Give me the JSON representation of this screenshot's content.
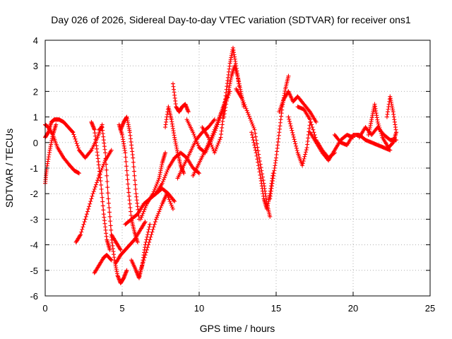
{
  "chart_data": {
    "type": "scatter",
    "title": "Day 026 of 2026, Sidereal Day-to-day VTEC variation (SDTVAR) for receiver ons1",
    "xlabel": "GPS time / hours",
    "ylabel": "SDTVAR / TECUs",
    "xlim": [
      0,
      25
    ],
    "ylim": [
      -6,
      4
    ],
    "x_ticks": [
      0,
      5,
      10,
      15,
      20,
      25
    ],
    "x_tick_labels": [
      "0",
      "5",
      "10",
      "15",
      "20",
      "25"
    ],
    "y_ticks": [
      -6,
      -5,
      -4,
      -3,
      -2,
      -1,
      0,
      1,
      2,
      3,
      4
    ],
    "y_tick_labels": [
      "-6",
      "-5",
      "-4",
      "-3",
      "-2",
      "-1",
      "0",
      "1",
      "2",
      "3",
      "4"
    ],
    "grid": true,
    "series": [
      {
        "name": "SDTVAR",
        "color": "#ff0000",
        "marker": "plus",
        "segments": [
          {
            "x": [
              0.0,
              0.2,
              0.5,
              0.8,
              1.2,
              1.6,
              1.9,
              2.2
            ],
            "y": [
              0.7,
              0.6,
              0.3,
              -0.2,
              -0.6,
              -0.9,
              -1.1,
              -1.2
            ]
          },
          {
            "x": [
              0.0,
              0.2,
              0.4,
              0.6,
              0.9,
              1.2,
              1.5,
              1.8
            ],
            "y": [
              0.2,
              0.4,
              0.8,
              0.9,
              0.9,
              0.8,
              0.6,
              0.4
            ]
          },
          {
            "x": [
              0.0,
              0.1,
              0.3,
              0.5,
              0.7
            ],
            "y": [
              -1.6,
              -1.0,
              -0.3,
              0.3,
              0.7
            ]
          },
          {
            "x": [
              1.8,
              2.2,
              2.6,
              3.0,
              3.4,
              3.7
            ],
            "y": [
              0.4,
              -0.3,
              -0.6,
              -0.3,
              0.2,
              0.7
            ]
          },
          {
            "x": [
              2.0,
              2.3,
              2.7,
              3.1,
              3.5,
              3.9,
              4.3
            ],
            "y": [
              -3.9,
              -3.6,
              -2.8,
              -2.0,
              -1.3,
              -0.7,
              -0.3
            ]
          },
          {
            "x": [
              3.0,
              3.2,
              3.4,
              3.6,
              3.8,
              4.0,
              4.2
            ],
            "y": [
              0.8,
              0.5,
              -0.5,
              -1.5,
              -2.8,
              -3.8,
              -4.2
            ]
          },
          {
            "x": [
              3.2,
              3.5,
              3.8,
              4.0,
              4.3
            ],
            "y": [
              -5.1,
              -4.8,
              -4.5,
              -4.4,
              -4.6
            ]
          },
          {
            "x": [
              3.5,
              3.7,
              3.9,
              4.1,
              4.3,
              4.6,
              4.9
            ],
            "y": [
              0.5,
              0.6,
              -0.4,
              -2.2,
              -3.6,
              -3.9,
              -4.2
            ]
          },
          {
            "x": [
              4.3,
              4.5,
              4.7,
              4.9,
              5.1,
              5.3
            ],
            "y": [
              -3.7,
              -4.6,
              -5.2,
              -5.5,
              -5.3,
              -5.0
            ]
          },
          {
            "x": [
              4.8,
              5.0,
              5.2,
              5.4,
              5.6,
              5.8,
              6.0
            ],
            "y": [
              0.7,
              0.3,
              -0.4,
              -1.8,
              -3.0,
              -3.5,
              -3.9
            ]
          },
          {
            "x": [
              4.6,
              4.9,
              5.2,
              5.5,
              5.8,
              6.2,
              6.5
            ],
            "y": [
              -4.7,
              -4.4,
              -4.2,
              -4.0,
              -3.8,
              -3.4,
              -3.1
            ]
          },
          {
            "x": [
              4.9,
              5.1,
              5.3,
              5.5,
              5.7,
              5.9,
              6.1
            ],
            "y": [
              0.5,
              0.8,
              1.0,
              0.4,
              -0.6,
              -2.0,
              -3.0
            ]
          },
          {
            "x": [
              5.2,
              5.6,
              6.0,
              6.4,
              6.8,
              7.2,
              7.6,
              8.0,
              8.4
            ],
            "y": [
              -3.2,
              -3.0,
              -2.8,
              -2.4,
              -2.2,
              -2.0,
              -1.8,
              -2.0,
              -2.3
            ]
          },
          {
            "x": [
              5.6,
              5.9,
              6.1,
              6.3,
              6.5,
              6.8
            ],
            "y": [
              -4.6,
              -5.0,
              -5.3,
              -4.8,
              -4.0,
              -3.2
            ]
          },
          {
            "x": [
              6.1,
              6.4,
              6.8,
              7.2,
              7.6,
              7.9,
              8.3
            ],
            "y": [
              -5.2,
              -4.6,
              -3.8,
              -3.0,
              -2.4,
              -2.0,
              -2.6
            ]
          },
          {
            "x": [
              6.2,
              6.6,
              7.0,
              7.4,
              7.6,
              7.8
            ],
            "y": [
              -3.0,
              -2.4,
              -2.0,
              -1.4,
              -0.8,
              -0.4
            ]
          },
          {
            "x": [
              7.2,
              7.6,
              8.0,
              8.4,
              8.8,
              9.2,
              9.6,
              10.0
            ],
            "y": [
              -2.0,
              -1.6,
              -1.0,
              -0.6,
              -0.4,
              -0.6,
              -1.0,
              -1.2
            ]
          },
          {
            "x": [
              7.8,
              8.0,
              8.2,
              8.4,
              8.6,
              8.8,
              9.0
            ],
            "y": [
              0.6,
              1.4,
              0.9,
              0.2,
              -0.4,
              -0.9,
              -1.2
            ]
          },
          {
            "x": [
              8.3,
              8.5,
              8.7,
              8.9,
              9.1,
              9.3
            ],
            "y": [
              2.3,
              1.4,
              1.2,
              1.4,
              1.5,
              1.2
            ]
          },
          {
            "x": [
              8.6,
              9.0,
              9.4,
              9.8,
              10.2,
              10.6,
              11.0
            ],
            "y": [
              -1.4,
              -0.9,
              -0.4,
              0.1,
              0.4,
              0.6,
              0.9
            ]
          },
          {
            "x": [
              9.2,
              9.6,
              10.0,
              10.4,
              10.8,
              11.2,
              11.6,
              12.0
            ],
            "y": [
              0.9,
              0.4,
              -0.2,
              -0.4,
              0.1,
              0.7,
              1.4,
              2.0
            ]
          },
          {
            "x": [
              9.6,
              10.0,
              10.4,
              10.8,
              11.2,
              11.5,
              11.8
            ],
            "y": [
              -1.3,
              -0.8,
              -0.3,
              0.2,
              0.8,
              1.3,
              1.8
            ]
          },
          {
            "x": [
              10.2,
              10.6,
              11.0,
              11.4,
              11.6,
              11.8,
              12.0,
              12.2,
              12.4,
              12.6
            ],
            "y": [
              0.6,
              0.2,
              -0.4,
              0.2,
              1.2,
              2.2,
              3.1,
              3.7,
              3.0,
              2.2
            ]
          },
          {
            "x": [
              11.6,
              11.9,
              12.1,
              12.3,
              12.5,
              12.7,
              12.9
            ],
            "y": [
              1.0,
              2.0,
              2.6,
              3.0,
              2.6,
              2.0,
              1.4
            ]
          },
          {
            "x": [
              12.4,
              12.8,
              13.2,
              13.6,
              13.9,
              14.2,
              14.4,
              14.6
            ],
            "y": [
              2.1,
              1.7,
              1.1,
              0.5,
              -0.6,
              -1.6,
              -2.4,
              -2.9
            ]
          },
          {
            "x": [
              13.4,
              13.7,
              14.0,
              14.2,
              14.4,
              14.6,
              14.8
            ],
            "y": [
              0.4,
              -0.4,
              -1.4,
              -2.2,
              -2.6,
              -2.0,
              -1.2
            ]
          },
          {
            "x": [
              14.6,
              14.8,
              15.0,
              15.2,
              15.4,
              15.6,
              15.8
            ],
            "y": [
              -2.2,
              -1.4,
              -0.6,
              0.4,
              1.4,
              2.1,
              2.6
            ]
          },
          {
            "x": [
              15.2,
              15.5,
              15.8,
              16.1,
              16.4,
              16.8,
              17.2,
              17.6
            ],
            "y": [
              1.2,
              1.7,
              2.0,
              1.6,
              1.8,
              1.5,
              1.2,
              0.8
            ]
          },
          {
            "x": [
              15.8,
              16.1,
              16.4,
              16.7,
              17.0,
              17.2
            ],
            "y": [
              1.0,
              0.3,
              -0.4,
              -0.9,
              -0.2,
              0.8
            ]
          },
          {
            "x": [
              16.4,
              16.8,
              17.2,
              17.6,
              18.0,
              18.4,
              18.8
            ],
            "y": [
              1.4,
              1.3,
              0.9,
              0.1,
              -0.3,
              -0.6,
              -0.4
            ]
          },
          {
            "x": [
              17.2,
              17.6,
              18.0,
              18.4,
              18.8,
              19.2,
              19.6,
              20.0
            ],
            "y": [
              0.4,
              0.0,
              -0.4,
              -0.7,
              -0.3,
              0.1,
              0.3,
              0.2
            ]
          },
          {
            "x": [
              18.8,
              19.2,
              19.6,
              20.0,
              20.4,
              20.8,
              21.2,
              21.6,
              22.0,
              22.4
            ],
            "y": [
              0.3,
              0.0,
              -0.1,
              0.3,
              0.3,
              0.1,
              0.0,
              -0.1,
              -0.2,
              -0.3
            ]
          },
          {
            "x": [
              20.4,
              20.8,
              21.2,
              21.6,
              22.0,
              22.4,
              22.8
            ],
            "y": [
              0.2,
              0.6,
              0.3,
              0.6,
              0.3,
              0.1,
              0.1
            ]
          },
          {
            "x": [
              21.0,
              21.2,
              21.4,
              21.6,
              21.9,
              22.3,
              22.6,
              22.8
            ],
            "y": [
              0.3,
              0.9,
              1.5,
              0.8,
              0.2,
              -0.2,
              0.0,
              0.4
            ]
          },
          {
            "x": [
              22.2,
              22.4,
              22.6,
              22.8
            ],
            "y": [
              1.0,
              1.8,
              1.2,
              0.4
            ]
          }
        ]
      }
    ]
  }
}
